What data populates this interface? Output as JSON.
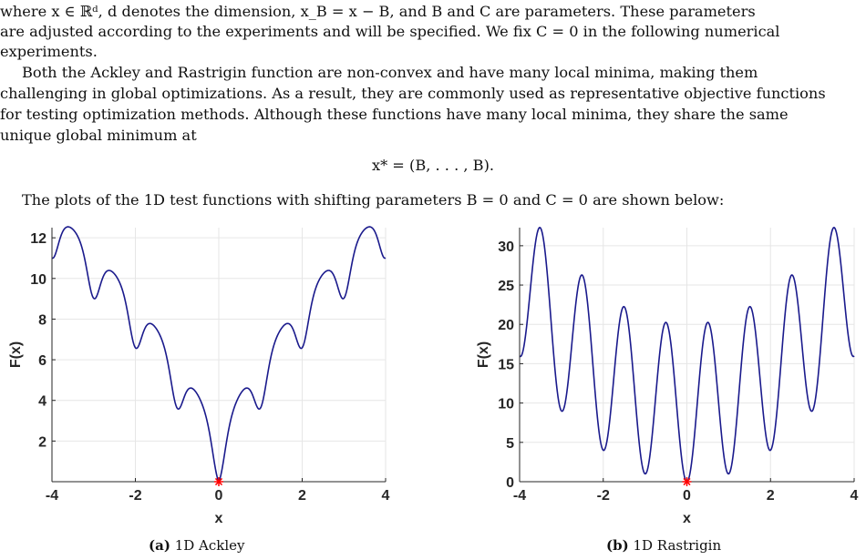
{
  "paragraph1": {
    "line1": "where x ∈ ℝᵈ, d denotes the dimension, x_B = x − B, and B and C are parameters. These parameters",
    "line2": "are adjusted according to the experiments and will be specified. We fix C = 0 in the following numerical",
    "line3": "experiments."
  },
  "paragraph2": {
    "line1": "Both the Ackley and Rastrigin function are non-convex and have many local minima, making them",
    "line2": "challenging in global optimizations. As a result, they are commonly used as representative objective functions",
    "line3": "for testing optimization methods. Although these functions have many local minima, they share the same",
    "line4": "unique global minimum at"
  },
  "equation": "x* = (B, . . . , B).",
  "paragraph3": "The plots of the 1D test functions with shifting parameters B = 0 and C = 0 are shown below:",
  "colors": {
    "curve": "#1a1a8c",
    "marker": "#ff0000",
    "grid": "#e6e6e6"
  },
  "chart_data": [
    {
      "type": "line",
      "function": "ackley",
      "x_range": [
        -4,
        4
      ],
      "xticks": [
        -4,
        -2,
        0,
        2,
        4
      ],
      "yticks": [
        2,
        4,
        6,
        8,
        10,
        12
      ],
      "ylim": [
        0,
        12.5
      ],
      "xlabel": "x",
      "ylabel": "F(x)",
      "grid": true,
      "minimum": {
        "x": 0,
        "y": 0
      },
      "caption_label": "(a)",
      "caption_text": "1D Ackley"
    },
    {
      "type": "line",
      "function": "rastrigin",
      "x_range": [
        -4,
        4
      ],
      "xticks": [
        -4,
        -2,
        0,
        2,
        4
      ],
      "yticks": [
        0,
        5,
        10,
        15,
        20,
        25,
        30
      ],
      "ylim": [
        0,
        32.3
      ],
      "xlabel": "x",
      "ylabel": "F(x)",
      "grid": true,
      "minimum": {
        "x": 0,
        "y": 0
      },
      "caption_label": "(b)",
      "caption_text": "1D Rastrigin"
    }
  ]
}
